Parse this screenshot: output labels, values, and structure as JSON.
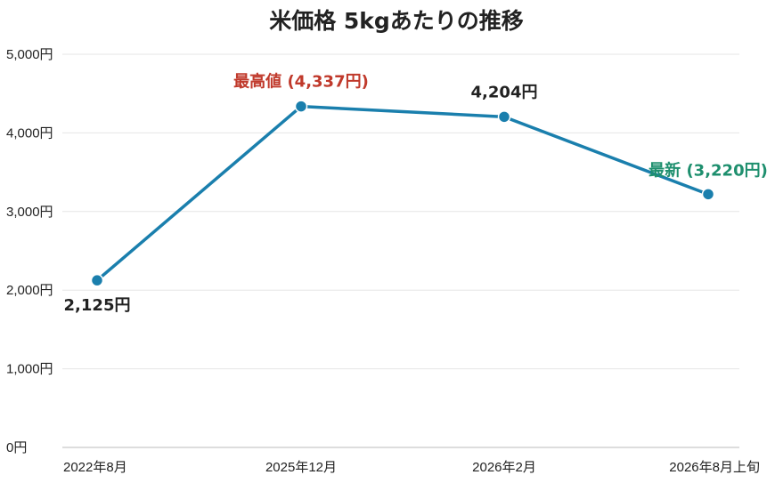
{
  "chart_data": {
    "type": "line",
    "title": "米価格 5kgあたりの推移",
    "xlabel": "",
    "ylabel": "",
    "categories": [
      "2022年8月",
      "2025年12月",
      "2026年2月",
      "2026年8月上旬"
    ],
    "series": [
      {
        "values": [
          2125,
          4337,
          4204,
          3220
        ]
      }
    ],
    "ylim": [
      0,
      5000
    ],
    "yticks": [
      {
        "value": 0,
        "label": "0円"
      },
      {
        "value": 1000,
        "label": "1,000円"
      },
      {
        "value": 2000,
        "label": "2,000円"
      },
      {
        "value": 3000,
        "label": "3,000円"
      },
      {
        "value": 4000,
        "label": "4,000円"
      },
      {
        "value": 5000,
        "label": "5,000円"
      }
    ],
    "data_labels": [
      {
        "text": "2,125円",
        "color": "#222222",
        "placement": "below"
      },
      {
        "text": "最高値 (4,337円)",
        "color": "#c0392b",
        "placement": "above"
      },
      {
        "text": "4,204円",
        "color": "#222222",
        "placement": "above"
      },
      {
        "text": "最新 (3,220円)",
        "color": "#1e8f6e",
        "placement": "above"
      }
    ],
    "grid": true,
    "colors": {
      "line": "#1a7fad",
      "marker": "#1a7fad",
      "text": "#222222"
    }
  }
}
